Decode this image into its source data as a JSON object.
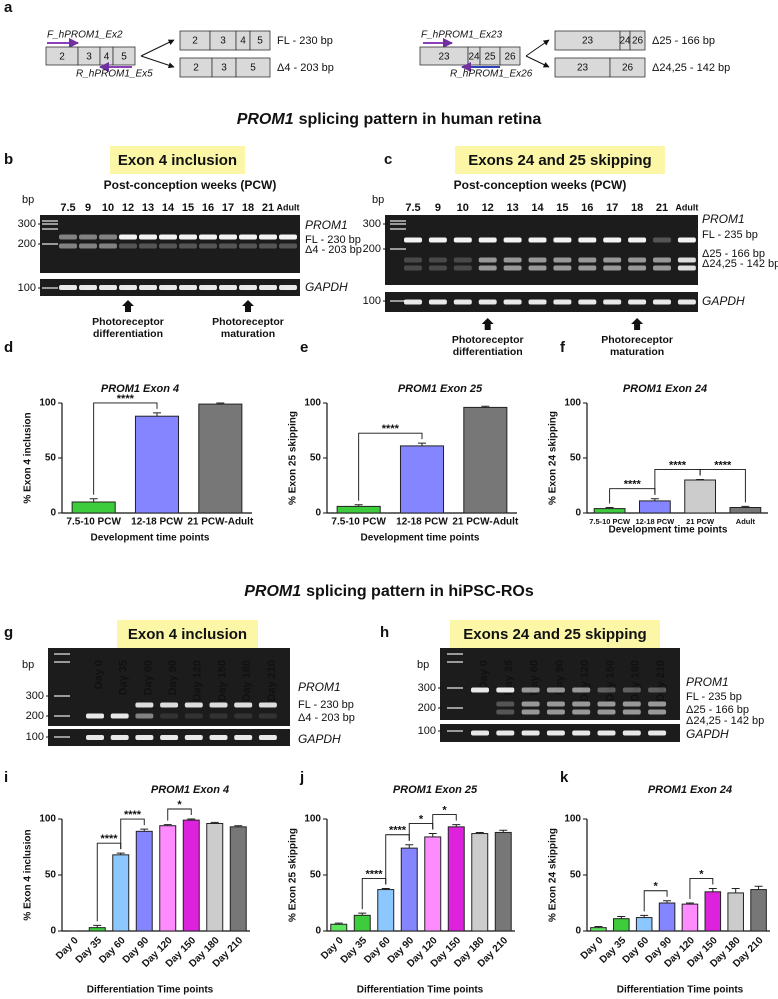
{
  "panel_labels": [
    "a",
    "b",
    "c",
    "d",
    "e",
    "f",
    "g",
    "h",
    "i",
    "j",
    "k"
  ],
  "schematic": [
    {
      "forward_primer": "F_hPROM1_Ex2",
      "reverse_primer": "R_hPROM1_Ex5",
      "exons": [
        "2",
        "3",
        "4",
        "5"
      ],
      "products": [
        {
          "exons": [
            "2",
            "3",
            "4",
            "5"
          ],
          "label": "FL - 230 bp"
        },
        {
          "exons": [
            "2",
            "3",
            "5"
          ],
          "label": "Δ4 - 203 bp"
        }
      ]
    },
    {
      "forward_primer": "F_hPROM1_Ex23",
      "reverse_primer": "R_hPROM1_Ex26",
      "exons": [
        "23",
        "24",
        "25",
        "26"
      ],
      "products": [
        {
          "exons": [
            "23",
            "24",
            "26"
          ],
          "label": "Δ25 - 166 bp"
        },
        {
          "exons": [
            "23",
            "26"
          ],
          "label": "Δ24,25 - 142 bp"
        }
      ]
    }
  ],
  "section_titles": [
    {
      "gene": "PROM1",
      "text": "splicing pattern in human retina"
    },
    {
      "gene": "PROM1",
      "text": "splicing pattern in hiPSC-ROs"
    }
  ],
  "gels": [
    {
      "heading": "Exon 4 inclusion",
      "title": "Post-conception weeks (PCW)",
      "bp": "bp",
      "lanes": [
        "7.5",
        "9",
        "10",
        "12",
        "13",
        "14",
        "15",
        "16",
        "17",
        "18",
        "21",
        "Adult"
      ],
      "markers": [
        300,
        200,
        100
      ],
      "gene": "PROM1",
      "bands": [
        "FL - 230 bp",
        "Δ4 - 203 bp"
      ],
      "control": "GAPDH",
      "arrows": [
        {
          "lane": "12",
          "lines": [
            "Photoreceptor",
            "differentiation"
          ]
        },
        {
          "lane": "18",
          "lines": [
            "Photoreceptor",
            "maturation"
          ]
        }
      ]
    },
    {
      "heading": "Exons 24 and 25 skipping",
      "title": "Post-conception weeks (PCW)",
      "bp": "bp",
      "lanes": [
        "7.5",
        "9",
        "10",
        "12",
        "13",
        "14",
        "15",
        "16",
        "17",
        "18",
        "21",
        "Adult"
      ],
      "markers": [
        300,
        200,
        100
      ],
      "gene": "PROM1",
      "bands": [
        "FL - 235 bp",
        "Δ25 - 166 bp",
        "Δ24,25 - 142 bp"
      ],
      "control": "GAPDH",
      "arrows": [
        {
          "lane": "12",
          "lines": [
            "Photoreceptor",
            "differentiation"
          ]
        },
        {
          "lane": "18",
          "lines": [
            "Photoreceptor",
            "maturation"
          ]
        }
      ]
    },
    {
      "heading": "Exon 4 inclusion",
      "bp": "bp",
      "lanes": [
        "Day 0",
        "Day 35",
        "Day 60",
        "Day 90",
        "Day 120",
        "Day 150",
        "Day 180",
        "Day 210"
      ],
      "markers": [
        300,
        200,
        100
      ],
      "gene": "PROM1",
      "bands": [
        "FL - 230 bp",
        "Δ4 - 203 bp"
      ],
      "control": "GAPDH"
    },
    {
      "heading": "Exons 24 and 25 skipping",
      "bp": "bp",
      "lanes": [
        "Day 0",
        "Day 35",
        "Day 60",
        "Day 90",
        "Day 120",
        "Day 150",
        "Day 180",
        "Day 210"
      ],
      "markers": [
        300,
        200,
        100
      ],
      "gene": "PROM1",
      "bands": [
        "FL - 235 bp",
        "Δ25 - 166 bp",
        "Δ24,25 - 142 bp"
      ],
      "control": "GAPDH"
    }
  ],
  "chart_data": [
    {
      "type": "bar",
      "title": "PROM1 Exon 4",
      "ylabel": "% Exon 4 inclusion",
      "xlabel": "Development time points",
      "categories": [
        "7.5-10 PCW",
        "12-18 PCW",
        "21 PCW-Adult"
      ],
      "values": [
        10,
        88,
        99
      ],
      "errors": [
        3,
        3,
        1
      ],
      "colors": [
        "#3ccc3c",
        "#8585ff",
        "#777777"
      ],
      "ylim": [
        0,
        100
      ],
      "yticks": [
        0,
        50,
        100
      ],
      "significance": [
        {
          "from": "7.5-10 PCW",
          "to": "12-18 PCW",
          "label": "****"
        }
      ]
    },
    {
      "type": "bar",
      "title": "PROM1 Exon 25",
      "ylabel": "% Exon 25 skipping",
      "xlabel": "Development time points",
      "categories": [
        "7.5-10 PCW",
        "12-18 PCW",
        "21 PCW-Adult"
      ],
      "values": [
        6,
        61,
        96
      ],
      "errors": [
        1.5,
        2.5,
        1
      ],
      "colors": [
        "#3ccc3c",
        "#8585ff",
        "#777777"
      ],
      "ylim": [
        0,
        100
      ],
      "yticks": [
        0,
        50,
        100
      ],
      "significance": [
        {
          "from": "7.5-10 PCW",
          "to": "12-18 PCW",
          "label": "****"
        }
      ]
    },
    {
      "type": "bar",
      "title": "PROM1 Exon 24",
      "ylabel": "% Exon 24 skipping",
      "xlabel": "Development time points",
      "categories": [
        "7.5-10 PCW",
        "12-18 PCW",
        "21 PCW",
        "Adult"
      ],
      "values": [
        4,
        11,
        30,
        5
      ],
      "errors": [
        1,
        2,
        0.5,
        1
      ],
      "colors": [
        "#3ccc3c",
        "#8585ff",
        "#cccccc",
        "#777777"
      ],
      "ylim": [
        0,
        100
      ],
      "yticks": [
        0,
        50,
        100
      ],
      "significance": [
        {
          "from": "7.5-10 PCW",
          "to": "12-18 PCW",
          "label": "****"
        },
        {
          "from": "12-18 PCW",
          "to": "21 PCW",
          "label": "****"
        },
        {
          "from": "21 PCW",
          "to": "Adult",
          "label": "****"
        }
      ]
    },
    {
      "type": "bar",
      "title": "PROM1 Exon 4",
      "ylabel": "% Exon 4 inclusion",
      "xlabel": "Differentiation Time points",
      "categories": [
        "Day 0",
        "Day 35",
        "Day 60",
        "Day 90",
        "Day 120",
        "Day 150",
        "Day 180",
        "Day 210"
      ],
      "values": [
        0,
        3,
        68,
        89,
        94,
        99,
        96,
        93
      ],
      "errors": [
        0,
        2,
        1.5,
        2,
        1,
        1,
        1,
        1
      ],
      "colors": [
        "#5ee65e",
        "#3ccc3c",
        "#8cc8ff",
        "#8585ff",
        "#ff8cff",
        "#dd22dd",
        "#cccccc",
        "#777777"
      ],
      "ylim": [
        0,
        100
      ],
      "yticks": [
        0,
        50,
        100
      ],
      "significance": [
        {
          "from": "Day 35",
          "to": "Day 60",
          "label": "****"
        },
        {
          "from": "Day 60",
          "to": "Day 90",
          "label": "****"
        },
        {
          "from": "Day 120",
          "to": "Day 150",
          "label": "*"
        }
      ]
    },
    {
      "type": "bar",
      "title": "PROM1 Exon 25",
      "ylabel": "% Exon 25 skipping",
      "xlabel": "Differentiation Time points",
      "categories": [
        "Day 0",
        "Day 35",
        "Day 60",
        "Day 90",
        "Day 120",
        "Day 150",
        "Day 180",
        "Day 210"
      ],
      "values": [
        6,
        14,
        37,
        74,
        84,
        93,
        87,
        88
      ],
      "errors": [
        1,
        2,
        1,
        3,
        3,
        2,
        1,
        2
      ],
      "colors": [
        "#5ee65e",
        "#3ccc3c",
        "#8cc8ff",
        "#8585ff",
        "#ff8cff",
        "#dd22dd",
        "#cccccc",
        "#777777"
      ],
      "ylim": [
        0,
        100
      ],
      "yticks": [
        0,
        50,
        100
      ],
      "significance": [
        {
          "from": "Day 35",
          "to": "Day 60",
          "label": "****"
        },
        {
          "from": "Day 60",
          "to": "Day 90",
          "label": "****"
        },
        {
          "from": "Day 90",
          "to": "Day 120",
          "label": "*"
        },
        {
          "from": "Day 120",
          "to": "Day 150",
          "label": "*"
        }
      ]
    },
    {
      "type": "bar",
      "title": "PROM1 Exon 24",
      "ylabel": "% Exon 24 skipping",
      "xlabel": "Differentiation Time points",
      "categories": [
        "Day 0",
        "Day 35",
        "Day 60",
        "Day 90",
        "Day 120",
        "Day 150",
        "Day 180",
        "Day 210"
      ],
      "values": [
        3,
        11,
        12,
        25,
        24,
        35,
        34,
        37
      ],
      "errors": [
        1,
        2,
        2,
        2,
        1,
        3,
        4,
        3
      ],
      "colors": [
        "#5ee65e",
        "#3ccc3c",
        "#8cc8ff",
        "#8585ff",
        "#ff8cff",
        "#dd22dd",
        "#cccccc",
        "#777777"
      ],
      "ylim": [
        0,
        100
      ],
      "yticks": [
        0,
        50,
        100
      ],
      "significance": [
        {
          "from": "Day 60",
          "to": "Day 90",
          "label": "*"
        },
        {
          "from": "Day 120",
          "to": "Day 150",
          "label": "*"
        }
      ]
    }
  ]
}
